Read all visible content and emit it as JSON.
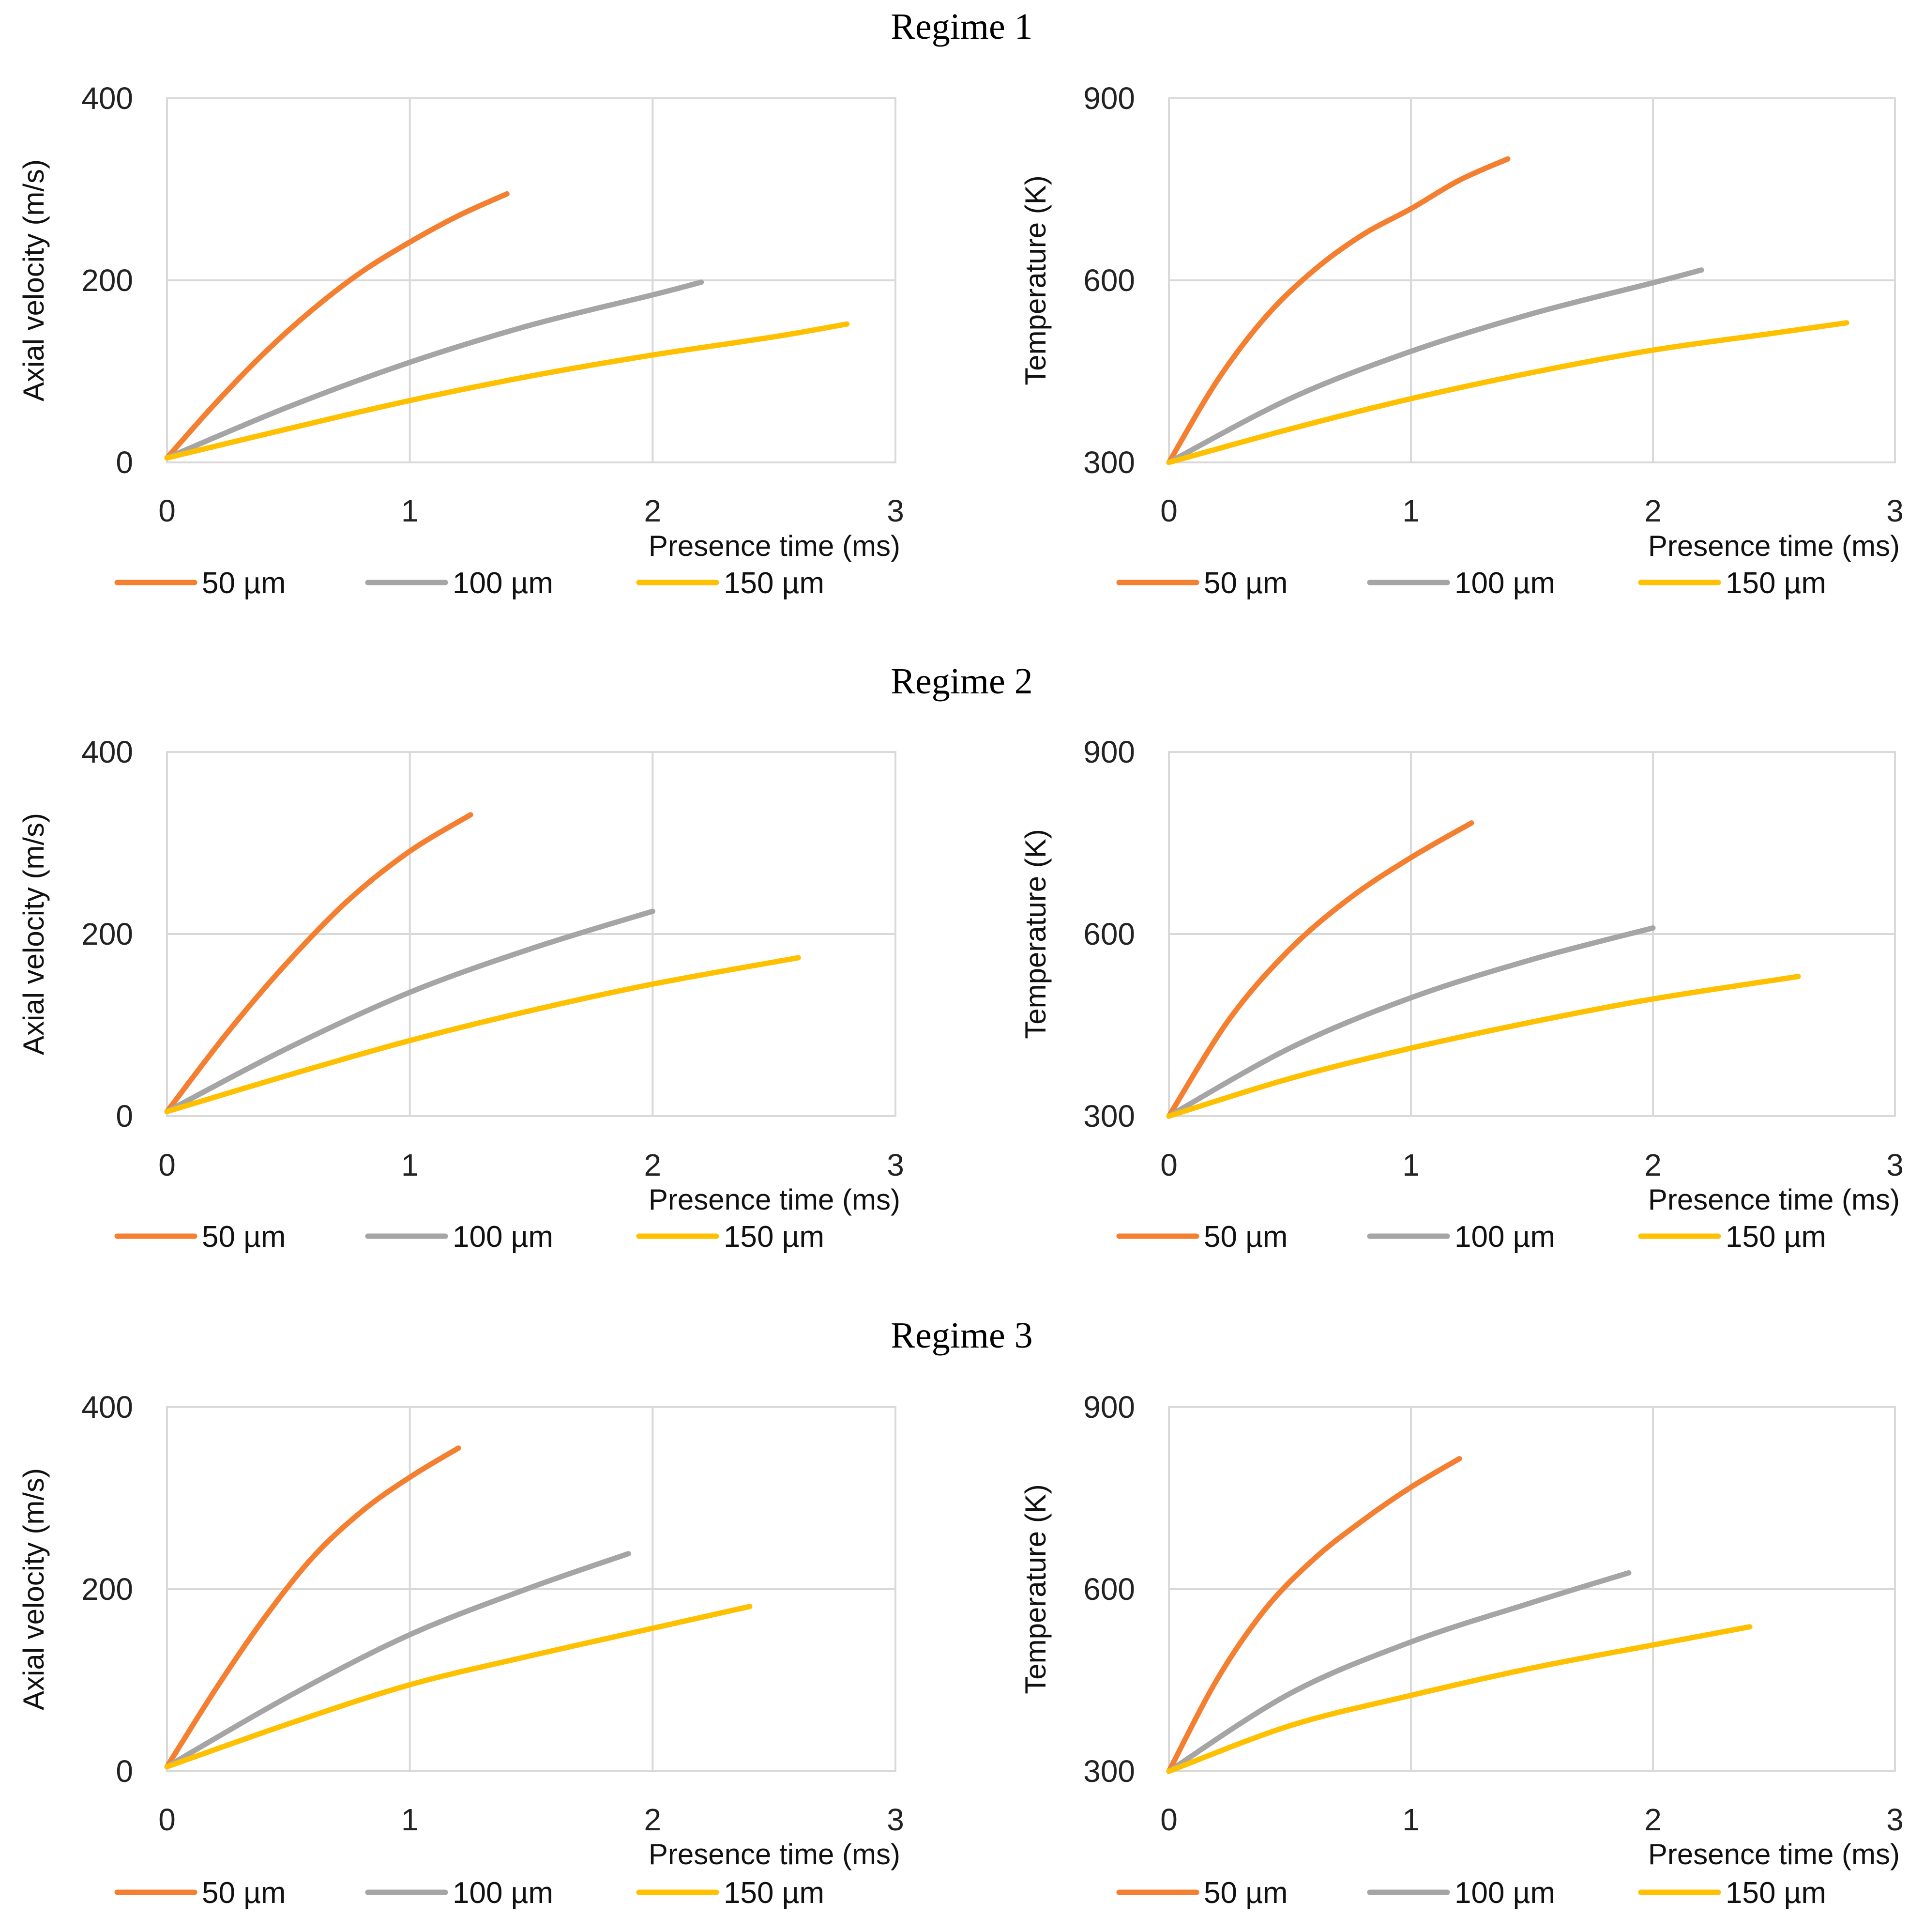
{
  "colors": {
    "s50": "#F47F30",
    "s100": "#A5A5A5",
    "s150": "#FFC000"
  },
  "chart_data": [
    {
      "type": "line",
      "regime": "Regime 1",
      "xlabel": "Presence time (ms)",
      "ylabel": "Axial velocity (m/s)",
      "xlim": [
        0,
        3
      ],
      "ylim": [
        0,
        400
      ],
      "xticks": [
        "0",
        "1",
        "2",
        "3"
      ],
      "yticks": [
        "0",
        "200",
        "400"
      ],
      "legend": "bottom",
      "grid": true,
      "series": [
        {
          "name": "50 µm",
          "color": "#F47F30",
          "x": [
            0,
            0.2,
            0.4,
            0.6,
            0.8,
            1.0,
            1.2,
            1.4
          ],
          "y": [
            5,
            65,
            120,
            168,
            209,
            242,
            271,
            295
          ]
        },
        {
          "name": "100 µm",
          "color": "#A5A5A5",
          "x": [
            0,
            0.5,
            1.0,
            1.5,
            2.0,
            2.2
          ],
          "y": [
            5,
            61,
            110,
            151,
            184,
            198
          ]
        },
        {
          "name": "150 µm",
          "color": "#FFC000",
          "x": [
            0,
            0.5,
            1.0,
            1.5,
            2.0,
            2.5,
            2.8
          ],
          "y": [
            5,
            37,
            68,
            95,
            118,
            138,
            152
          ]
        }
      ]
    },
    {
      "type": "line",
      "regime": "Regime 1",
      "xlabel": "Presence time (ms)",
      "ylabel": "Temperature (K)",
      "xlim": [
        0,
        3
      ],
      "ylim": [
        300,
        900
      ],
      "xticks": [
        "0",
        "1",
        "2",
        "3"
      ],
      "yticks": [
        "300",
        "600",
        "900"
      ],
      "legend": "bottom",
      "grid": true,
      "series": [
        {
          "name": "50 µm",
          "color": "#F47F30",
          "x": [
            0,
            0.2,
            0.4,
            0.6,
            0.8,
            1.0,
            1.2,
            1.4
          ],
          "y": [
            300,
            435,
            540,
            617,
            675,
            718,
            765,
            800
          ]
        },
        {
          "name": "100 µm",
          "color": "#A5A5A5",
          "x": [
            0,
            0.5,
            1.0,
            1.5,
            2.0,
            2.2
          ],
          "y": [
            300,
            405,
            483,
            545,
            596,
            617
          ]
        },
        {
          "name": "150 µm",
          "color": "#FFC000",
          "x": [
            0,
            0.5,
            1.0,
            1.5,
            2.0,
            2.5,
            2.8
          ],
          "y": [
            300,
            355,
            405,
            448,
            485,
            513,
            530
          ]
        }
      ]
    },
    {
      "type": "line",
      "regime": "Regime 2",
      "xlabel": "Presence time (ms)",
      "ylabel": "Axial velocity (m/s)",
      "xlim": [
        0,
        3
      ],
      "ylim": [
        0,
        400
      ],
      "xticks": [
        "0",
        "1",
        "2",
        "3"
      ],
      "yticks": [
        "0",
        "200",
        "400"
      ],
      "legend": "bottom",
      "grid": true,
      "series": [
        {
          "name": "50 µm",
          "color": "#F47F30",
          "x": [
            0,
            0.25,
            0.5,
            0.75,
            1.0,
            1.25
          ],
          "y": [
            5,
            92,
            170,
            238,
            291,
            331
          ]
        },
        {
          "name": "100 µm",
          "color": "#A5A5A5",
          "x": [
            0,
            0.5,
            1.0,
            1.5,
            2.0
          ],
          "y": [
            5,
            75,
            136,
            184,
            225
          ]
        },
        {
          "name": "150 µm",
          "color": "#FFC000",
          "x": [
            0,
            0.5,
            1.0,
            1.5,
            2.0,
            2.6
          ],
          "y": [
            5,
            45,
            83,
            116,
            145,
            174
          ]
        }
      ]
    },
    {
      "type": "line",
      "regime": "Regime 2",
      "xlabel": "Presence time (ms)",
      "ylabel": "Temperature (K)",
      "xlim": [
        0,
        3
      ],
      "ylim": [
        300,
        900
      ],
      "xticks": [
        "0",
        "1",
        "2",
        "3"
      ],
      "yticks": [
        "300",
        "600",
        "900"
      ],
      "legend": "bottom",
      "grid": true,
      "series": [
        {
          "name": "50 µm",
          "color": "#F47F30",
          "x": [
            0,
            0.25,
            0.5,
            0.75,
            1.0,
            1.25
          ],
          "y": [
            300,
            460,
            575,
            660,
            726,
            783
          ]
        },
        {
          "name": "100 µm",
          "color": "#A5A5A5",
          "x": [
            0,
            0.5,
            1.0,
            1.5,
            2.0
          ],
          "y": [
            300,
            412,
            495,
            558,
            610
          ]
        },
        {
          "name": "150 µm",
          "color": "#FFC000",
          "x": [
            0,
            0.5,
            1.0,
            1.5,
            2.0,
            2.6
          ],
          "y": [
            300,
            362,
            412,
            455,
            493,
            530
          ]
        }
      ]
    },
    {
      "type": "line",
      "regime": "Regime 3",
      "xlabel": "Presence time (ms)",
      "ylabel": "Axial velocity (m/s)",
      "xlim": [
        0,
        3
      ],
      "ylim": [
        0,
        400
      ],
      "xticks": [
        "0",
        "1",
        "2",
        "3"
      ],
      "yticks": [
        "0",
        "200",
        "400"
      ],
      "legend": "bottom",
      "grid": true,
      "series": [
        {
          "name": "50 µm",
          "color": "#F47F30",
          "x": [
            0,
            0.2,
            0.4,
            0.6,
            0.8,
            1.0,
            1.2
          ],
          "y": [
            5,
            90,
            168,
            235,
            285,
            323,
            355
          ]
        },
        {
          "name": "100 µm",
          "color": "#A5A5A5",
          "x": [
            0,
            0.5,
            1.0,
            1.5,
            1.9
          ],
          "y": [
            5,
            82,
            150,
            202,
            239
          ]
        },
        {
          "name": "150 µm",
          "color": "#FFC000",
          "x": [
            0,
            0.5,
            1.0,
            1.5,
            2.0,
            2.4
          ],
          "y": [
            5,
            52,
            95,
            127,
            157,
            181
          ]
        }
      ]
    },
    {
      "type": "line",
      "regime": "Regime 3",
      "xlabel": "Presence time (ms)",
      "ylabel": "Temperature (K)",
      "xlim": [
        0,
        3
      ],
      "ylim": [
        300,
        900
      ],
      "xticks": [
        "0",
        "1",
        "2",
        "3"
      ],
      "yticks": [
        "300",
        "600",
        "900"
      ],
      "legend": "bottom",
      "grid": true,
      "series": [
        {
          "name": "50 µm",
          "color": "#F47F30",
          "x": [
            0,
            0.2,
            0.4,
            0.6,
            0.8,
            1.0,
            1.2
          ],
          "y": [
            300,
            452,
            568,
            650,
            713,
            768,
            815
          ]
        },
        {
          "name": "100 µm",
          "color": "#A5A5A5",
          "x": [
            0,
            0.5,
            1.0,
            1.5,
            1.9
          ],
          "y": [
            300,
            428,
            513,
            578,
            627
          ]
        },
        {
          "name": "150 µm",
          "color": "#FFC000",
          "x": [
            0,
            0.5,
            1.0,
            1.5,
            2.0,
            2.4
          ],
          "y": [
            300,
            375,
            425,
            470,
            508,
            538
          ]
        }
      ]
    }
  ]
}
